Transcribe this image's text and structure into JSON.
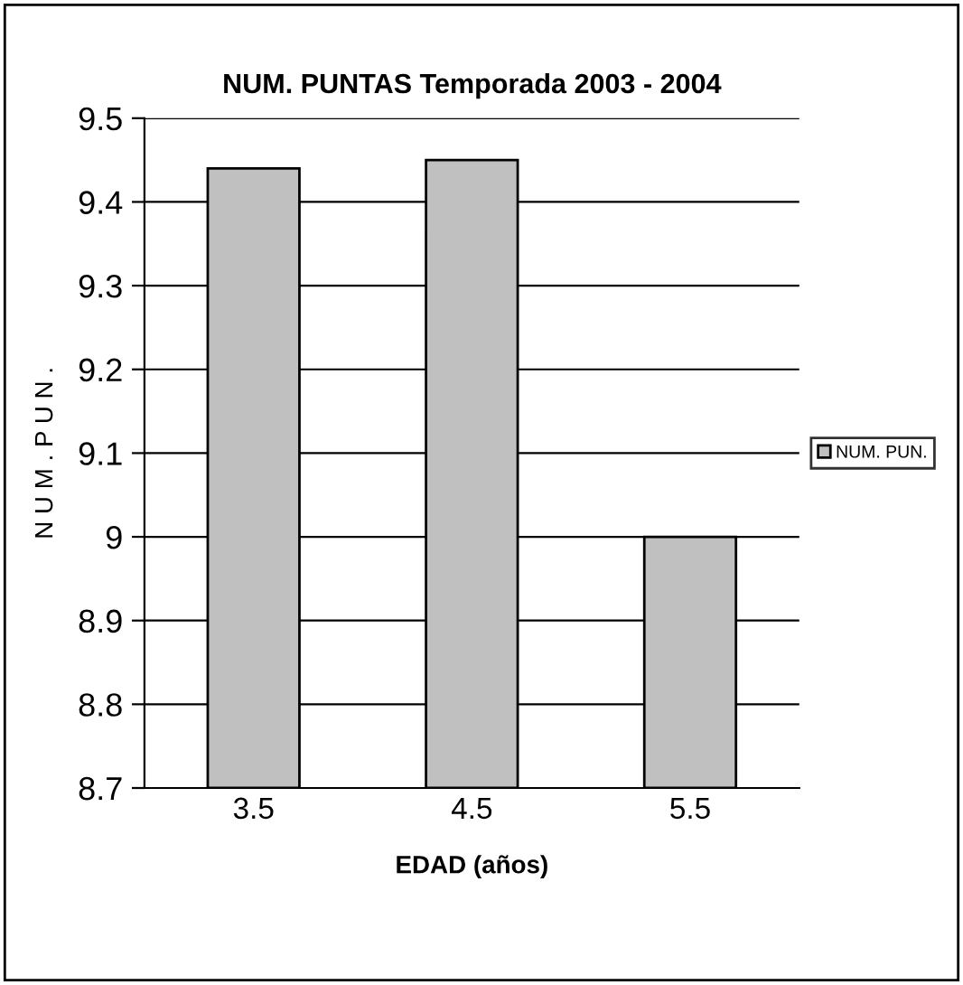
{
  "chart_data": {
    "type": "bar",
    "title": "NUM. PUNTAS Temporada 2003 - 2004",
    "xlabel": "EDAD (años)",
    "ylabel": "N U M . P U N .",
    "categories": [
      "3.5",
      "4.5",
      "5.5"
    ],
    "series": [
      {
        "name": "NUM. PUN.",
        "color": "#c0c0c0",
        "values": [
          9.44,
          9.45,
          9.0
        ]
      }
    ],
    "ylim": [
      8.7,
      9.5
    ],
    "yticks": [
      8.7,
      8.8,
      8.9,
      9,
      9.1,
      9.2,
      9.3,
      9.4,
      9.5
    ],
    "grid": "y",
    "legend": "right"
  }
}
